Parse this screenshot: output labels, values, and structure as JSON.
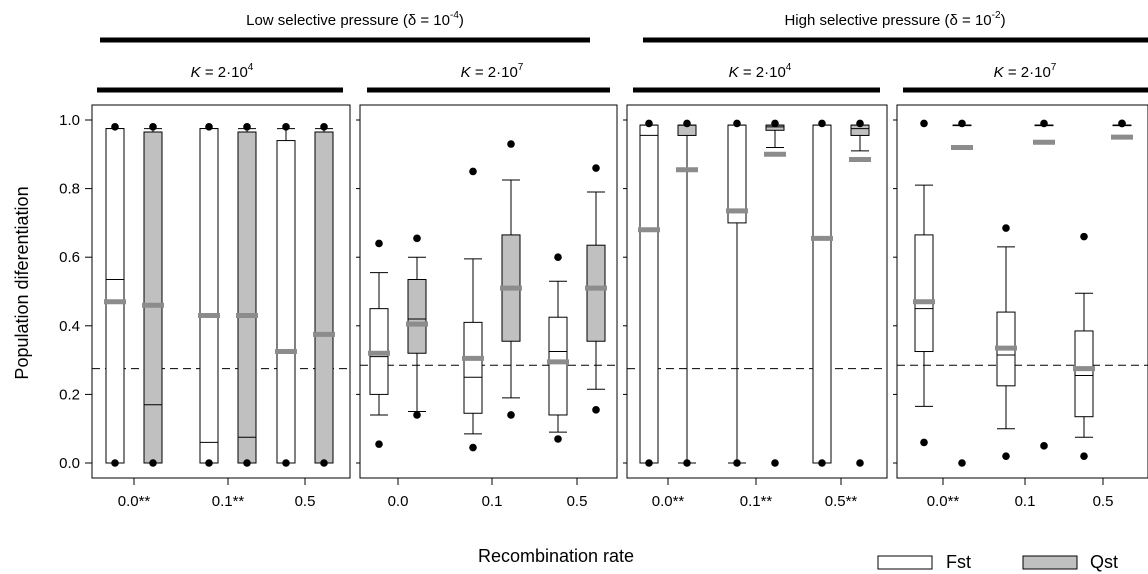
{
  "chart_data": {
    "type": "boxplot",
    "ylabel": "Population diferentiation",
    "xlabel": "Recombination rate",
    "ylim": [
      0,
      1
    ],
    "yticks": [
      "0.0",
      "0.2",
      "0.4",
      "0.6",
      "0.8",
      "1.0"
    ],
    "reference_lines": [
      0.275,
      0.285,
      0.275,
      0.285
    ],
    "groups": [
      {
        "title_text": "Low selective pressure (",
        "title_greek": "δ",
        "title_eq": " = 10",
        "title_exp": "-4",
        "title_close": ")"
      },
      {
        "title_text": "High selective pressure (",
        "title_greek": "δ",
        "title_eq": " = 10",
        "title_exp": "-2",
        "title_close": ")"
      }
    ],
    "panels": [
      {
        "k_base": "2·10",
        "k_exp": "4",
        "categories": [
          "0.0**",
          "0.1**",
          "0.5"
        ]
      },
      {
        "k_base": "2·10",
        "k_exp": "7",
        "categories": [
          "0.0",
          "0.1",
          "0.5"
        ]
      },
      {
        "k_base": "2·10",
        "k_exp": "4",
        "categories": [
          "0.0**",
          "0.1**",
          "0.5**"
        ]
      },
      {
        "k_base": "2·10",
        "k_exp": "7",
        "categories": [
          "0.0**",
          "0.1",
          "0.5"
        ]
      }
    ],
    "k_label": "K",
    "k_eq": " = ",
    "series_names": [
      "Fst",
      "Qst"
    ],
    "series_colors": {
      "Fst": "#ffffff",
      "Qst": "#c0c0c0",
      "mean": "#8c8c8c"
    },
    "boxes": [
      {
        "panel": 0,
        "cat": 0,
        "series": "Fst",
        "wlo": 0.0,
        "q1": 0.0,
        "median": 0.535,
        "q3": 0.975,
        "whi": 0.975,
        "mean": 0.47,
        "outliers": [
          0.98,
          0.0
        ]
      },
      {
        "panel": 0,
        "cat": 0,
        "series": "Qst",
        "wlo": 0.0,
        "q1": 0.0,
        "median": 0.17,
        "q3": 0.965,
        "whi": 0.975,
        "mean": 0.46,
        "outliers": [
          0.98,
          0.0
        ]
      },
      {
        "panel": 0,
        "cat": 1,
        "series": "Fst",
        "wlo": 0.0,
        "q1": 0.0,
        "median": 0.06,
        "q3": 0.975,
        "whi": 0.975,
        "mean": 0.43,
        "outliers": [
          0.98,
          0.0
        ]
      },
      {
        "panel": 0,
        "cat": 1,
        "series": "Qst",
        "wlo": 0.0,
        "q1": 0.0,
        "median": 0.075,
        "q3": 0.965,
        "whi": 0.975,
        "mean": 0.43,
        "outliers": [
          0.98,
          0.0
        ]
      },
      {
        "panel": 0,
        "cat": 2,
        "series": "Fst",
        "wlo": 0.0,
        "q1": 0.0,
        "median": 0.0,
        "q3": 0.94,
        "whi": 0.975,
        "mean": 0.325,
        "outliers": [
          0.98,
          0.0
        ]
      },
      {
        "panel": 0,
        "cat": 2,
        "series": "Qst",
        "wlo": 0.0,
        "q1": 0.0,
        "median": 0.0,
        "q3": 0.965,
        "whi": 0.975,
        "mean": 0.375,
        "outliers": [
          0.98,
          0.0
        ]
      },
      {
        "panel": 1,
        "cat": 0,
        "series": "Fst",
        "wlo": 0.14,
        "q1": 0.2,
        "median": 0.31,
        "q3": 0.45,
        "whi": 0.555,
        "mean": 0.32,
        "outliers": [
          0.64,
          0.055
        ]
      },
      {
        "panel": 1,
        "cat": 0,
        "series": "Qst",
        "wlo": 0.15,
        "q1": 0.32,
        "median": 0.42,
        "q3": 0.535,
        "whi": 0.6,
        "mean": 0.405,
        "outliers": [
          0.655,
          0.14
        ]
      },
      {
        "panel": 1,
        "cat": 1,
        "series": "Fst",
        "wlo": 0.085,
        "q1": 0.145,
        "median": 0.25,
        "q3": 0.41,
        "whi": 0.595,
        "mean": 0.305,
        "outliers": [
          0.85,
          0.045
        ]
      },
      {
        "panel": 1,
        "cat": 1,
        "series": "Qst",
        "wlo": 0.19,
        "q1": 0.355,
        "median": 0.51,
        "q3": 0.665,
        "whi": 0.825,
        "mean": 0.51,
        "outliers": [
          0.93,
          0.14
        ]
      },
      {
        "panel": 1,
        "cat": 2,
        "series": "Fst",
        "wlo": 0.09,
        "q1": 0.14,
        "median": 0.325,
        "q3": 0.425,
        "whi": 0.53,
        "mean": 0.295,
        "outliers": [
          0.6,
          0.07
        ]
      },
      {
        "panel": 1,
        "cat": 2,
        "series": "Qst",
        "wlo": 0.215,
        "q1": 0.355,
        "median": 0.51,
        "q3": 0.635,
        "whi": 0.79,
        "mean": 0.51,
        "outliers": [
          0.86,
          0.155
        ]
      },
      {
        "panel": 2,
        "cat": 0,
        "series": "Fst",
        "wlo": 0.0,
        "q1": 0.0,
        "median": 0.955,
        "q3": 0.985,
        "whi": 0.985,
        "mean": 0.68,
        "outliers": [
          0.99,
          0.0
        ]
      },
      {
        "panel": 2,
        "cat": 0,
        "series": "Qst",
        "wlo": 0.0,
        "q1": 0.955,
        "median": 0.985,
        "q3": 0.985,
        "whi": 0.985,
        "mean": 0.855,
        "outliers": [
          0.99,
          0.0
        ]
      },
      {
        "panel": 2,
        "cat": 1,
        "series": "Fst",
        "wlo": 0.0,
        "q1": 0.7,
        "median": 0.73,
        "q3": 0.985,
        "whi": 0.985,
        "mean": 0.735,
        "outliers": [
          0.99,
          0.0
        ]
      },
      {
        "panel": 2,
        "cat": 1,
        "series": "Qst",
        "wlo": 0.92,
        "q1": 0.97,
        "median": 0.98,
        "q3": 0.985,
        "whi": 0.985,
        "mean": 0.9,
        "outliers": [
          0.99,
          0.0
        ]
      },
      {
        "panel": 2,
        "cat": 2,
        "series": "Fst",
        "wlo": 0.0,
        "q1": 0.0,
        "median": 0.655,
        "q3": 0.985,
        "whi": 0.985,
        "mean": 0.655,
        "outliers": [
          0.99,
          0.0
        ]
      },
      {
        "panel": 2,
        "cat": 2,
        "series": "Qst",
        "wlo": 0.91,
        "q1": 0.955,
        "median": 0.975,
        "q3": 0.985,
        "whi": 0.985,
        "mean": 0.885,
        "outliers": [
          0.99,
          0.0
        ]
      },
      {
        "panel": 3,
        "cat": 0,
        "series": "Fst",
        "wlo": 0.165,
        "q1": 0.325,
        "median": 0.45,
        "q3": 0.665,
        "whi": 0.81,
        "mean": 0.47,
        "outliers": [
          0.99,
          0.06
        ]
      },
      {
        "panel": 3,
        "cat": 0,
        "series": "Qst",
        "wlo": 0.985,
        "q1": 0.985,
        "median": 0.985,
        "q3": 0.985,
        "whi": 0.985,
        "mean": 0.92,
        "outliers": [
          0.99,
          0.0
        ]
      },
      {
        "panel": 3,
        "cat": 1,
        "series": "Fst",
        "wlo": 0.1,
        "q1": 0.225,
        "median": 0.315,
        "q3": 0.44,
        "whi": 0.63,
        "mean": 0.335,
        "outliers": [
          0.685,
          0.02
        ]
      },
      {
        "panel": 3,
        "cat": 1,
        "series": "Qst",
        "wlo": 0.985,
        "q1": 0.985,
        "median": 0.985,
        "q3": 0.985,
        "whi": 0.985,
        "mean": 0.935,
        "outliers": [
          0.99,
          0.05
        ]
      },
      {
        "panel": 3,
        "cat": 2,
        "series": "Fst",
        "wlo": 0.075,
        "q1": 0.135,
        "median": 0.255,
        "q3": 0.385,
        "whi": 0.495,
        "mean": 0.275,
        "outliers": [
          0.66,
          0.02
        ]
      },
      {
        "panel": 3,
        "cat": 2,
        "series": "Qst",
        "wlo": 0.985,
        "q1": 0.985,
        "median": 0.985,
        "q3": 0.985,
        "whi": 0.985,
        "mean": 0.95,
        "outliers": [
          0.99,
          0.99
        ]
      }
    ]
  }
}
